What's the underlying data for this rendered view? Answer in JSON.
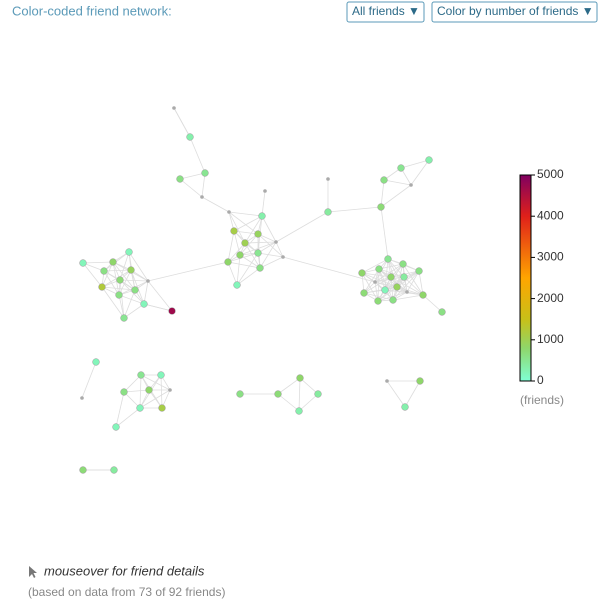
{
  "title": "Color-coded friend network:",
  "controls": {
    "filter": "All friends ▼",
    "color_by": "Color by number of friends ▼"
  },
  "legend": {
    "ticks": [
      0,
      1000,
      2000,
      3000,
      4000,
      5000
    ],
    "range": [
      0,
      5000
    ],
    "unit": "(friends)",
    "colorscale": [
      {
        "value": 0,
        "color": "#7fffd4"
      },
      {
        "value": 800,
        "color": "#8fd66a"
      },
      {
        "value": 1500,
        "color": "#c8c018"
      },
      {
        "value": 2500,
        "color": "#ffa500"
      },
      {
        "value": 4000,
        "color": "#e0201a"
      },
      {
        "value": 5000,
        "color": "#800060"
      }
    ]
  },
  "nodes": [
    {
      "friends": null
    },
    {
      "friends": 300
    },
    {
      "friends": 500
    },
    {
      "friends": 600
    },
    {
      "friends": null
    },
    {
      "friends": null
    },
    {
      "friends": 300
    },
    {
      "friends": null
    },
    {
      "friends": 1100
    },
    {
      "friends": 900
    },
    {
      "friends": 1000
    },
    {
      "friends": null
    },
    {
      "friends": 800
    },
    {
      "friends": 500
    },
    {
      "friends": 800
    },
    {
      "friends": null
    },
    {
      "friends": 600
    },
    {
      "friends": 200
    },
    {
      "friends": 200
    },
    {
      "friends": 200
    },
    {
      "friends": 800
    },
    {
      "friends": 600
    },
    {
      "friends": 900
    },
    {
      "friends": 700
    },
    {
      "friends": null
    },
    {
      "friends": 1200
    },
    {
      "friends": 600
    },
    {
      "friends": 600
    },
    {
      "friends": 200
    },
    {
      "friends": 500
    },
    {
      "friends": 4700
    },
    {
      "friends": null
    },
    {
      "friends": 400
    },
    {
      "friends": 700
    },
    {
      "friends": 600
    },
    {
      "friends": 500
    },
    {
      "friends": 300
    },
    {
      "friends": null
    },
    {
      "friends": 500
    },
    {
      "friends": 800
    },
    {
      "friends": 600
    },
    {
      "friends": 600
    },
    {
      "friends": 600
    },
    {
      "friends": 800
    },
    {
      "friends": 400
    },
    {
      "friends": null
    },
    {
      "friends": 900
    },
    {
      "friends": 200
    },
    {
      "friends": 700
    },
    {
      "friends": null
    },
    {
      "friends": 800
    },
    {
      "friends": 700
    },
    {
      "friends": 600
    },
    {
      "friends": 600
    },
    {
      "friends": 200
    },
    {
      "friends": 500
    },
    {
      "friends": 200
    },
    {
      "friends": 600
    },
    {
      "friends": 800
    },
    {
      "friends": null
    },
    {
      "friends": null
    },
    {
      "friends": 200
    },
    {
      "friends": 1100
    },
    {
      "friends": 200
    },
    {
      "friends": 600
    },
    {
      "friends": 700
    },
    {
      "friends": 800
    },
    {
      "friends": 400
    },
    {
      "friends": 300
    },
    {
      "friends": null
    },
    {
      "friends": 800
    },
    {
      "friends": 300
    },
    {
      "friends": 700
    },
    {
      "friends": 400
    }
  ],
  "footer": {
    "hint": "mouseover for friend details",
    "note": "(based on data from 73 of 92 friends)"
  }
}
